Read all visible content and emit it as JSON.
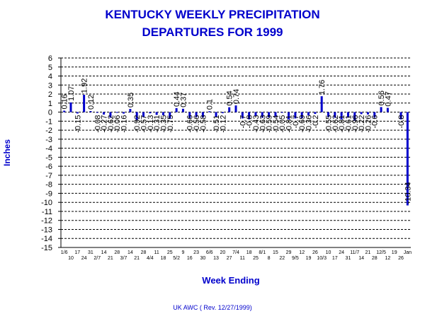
{
  "chart_data": {
    "type": "bar",
    "title": "KENTUCKY WEEKLY PRECIPITATION",
    "subtitle": "DEPARTURES FOR 1999",
    "xlabel": "Week Ending",
    "ylabel": "Inches",
    "ylim": [
      -15,
      6
    ],
    "yticks": [
      "6",
      "5",
      "4",
      "3",
      "2",
      "1",
      "0",
      "-1",
      "-2",
      "-3",
      "-4",
      "-5",
      "-6",
      "-7",
      "-8",
      "-9",
      "-10",
      "-11",
      "-12",
      "-13",
      "-14",
      "-15"
    ],
    "grid": true,
    "legend": "none",
    "bar_color": "#0000cc",
    "categories": [
      "1/6",
      "10",
      "17",
      "24",
      "31",
      "2/7",
      "14",
      "21",
      "28",
      "3/7",
      "14",
      "21",
      "28",
      "4/4",
      "11",
      "18",
      "25",
      "5/2",
      "9",
      "16",
      "23",
      "30",
      "6/6",
      "13",
      "20",
      "27",
      "7/4",
      "11",
      "18",
      "25",
      "8/1",
      "8",
      "15",
      "22",
      "29",
      "9/5",
      "12",
      "19",
      "26",
      "10/3",
      "10",
      "17",
      "24",
      "31",
      "11/7",
      "14",
      "21",
      "28",
      "12/5",
      "12",
      "19",
      "26",
      "Jan"
    ],
    "values": [
      0.16,
      1.07,
      -0.15,
      1.92,
      0.12,
      -0.08,
      -0.27,
      -0.62,
      -0.06,
      -0.16,
      0.35,
      -0.92,
      -0.57,
      -0.13,
      -0.31,
      -0.35,
      -0.75,
      0.44,
      0.37,
      -0.66,
      -0.56,
      -0.58,
      0.1,
      -0.51,
      -0.12,
      0.54,
      0.74,
      -0.7,
      -0.8,
      -0.43,
      -0.63,
      -0.59,
      -0.54,
      -0.05,
      -0.81,
      -0.7,
      -0.69,
      -0.36,
      -0.2,
      1.76,
      -0.55,
      -0.62,
      -0.81,
      -0.61,
      -0.96,
      -0.22,
      -0.26,
      -0.6,
      0.56,
      0.47,
      0.0,
      -0.8,
      -10.34
    ],
    "value_labels": [
      "0.16",
      "1.07",
      "-0.15",
      "1.92",
      "0.12",
      "-0.08",
      "-0.27",
      "-0.62",
      "-0.06",
      "-0.16",
      "0.35",
      "-0.92",
      "-0.57",
      "-0.13",
      "-0.31",
      "-0.35",
      "-0.75",
      "0.44",
      "0.37",
      "-0.66",
      "-0.56",
      "-0.58",
      "0.1",
      "-0.51",
      "-0.12",
      "0.54",
      "0.74",
      "-0.7",
      "-0.8",
      "-0.43",
      "-0.63",
      "-0.59",
      "-0.54",
      "-0.05",
      "-0.81",
      "-0.7",
      "-0.69",
      "-0.36",
      "-0.2",
      "1.76",
      "-0.55",
      "-0.62",
      "-0.81",
      "-0.61",
      "-0.96",
      "-0.22",
      "-0.26",
      "-0.6",
      "0.56",
      "0.47",
      "",
      "-0.8",
      "-10.34"
    ]
  },
  "footer": "UK AWC ( Rev. 12/27/1999)"
}
